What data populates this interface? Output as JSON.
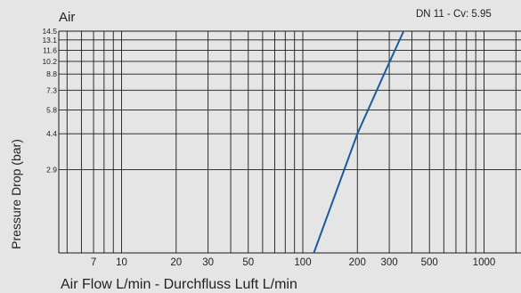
{
  "chart_data": {
    "type": "line",
    "title": "Air",
    "xlabel": "Air Flow L/min - Durchfluss Luft L/min",
    "ylabel": "Pressure Drop (bar)",
    "x_scale": "log",
    "y_scale": "log",
    "xlim": [
      4.5,
      1600
    ],
    "ylim": [
      1.1,
      14.5
    ],
    "x_gridlines": [
      5,
      6,
      7,
      8,
      9,
      10,
      20,
      30,
      40,
      50,
      60,
      70,
      80,
      90,
      100,
      200,
      300,
      400,
      500,
      600,
      700,
      800,
      900,
      1000,
      1500
    ],
    "x_ticks": [
      7,
      10,
      20,
      30,
      50,
      100,
      200,
      300,
      500,
      1000
    ],
    "y_ticks": [
      14.5,
      13.1,
      11.6,
      10.2,
      8.8,
      7.3,
      5.8,
      4.4,
      2.9
    ],
    "grid": true,
    "series": [
      {
        "name": "DN 11 - Cv: 5.95",
        "color": "#1b5aa0",
        "points": [
          [
            115,
            1.1
          ],
          [
            200,
            4.4
          ],
          [
            290,
            9.4
          ],
          [
            360,
            14.5
          ]
        ]
      }
    ]
  }
}
